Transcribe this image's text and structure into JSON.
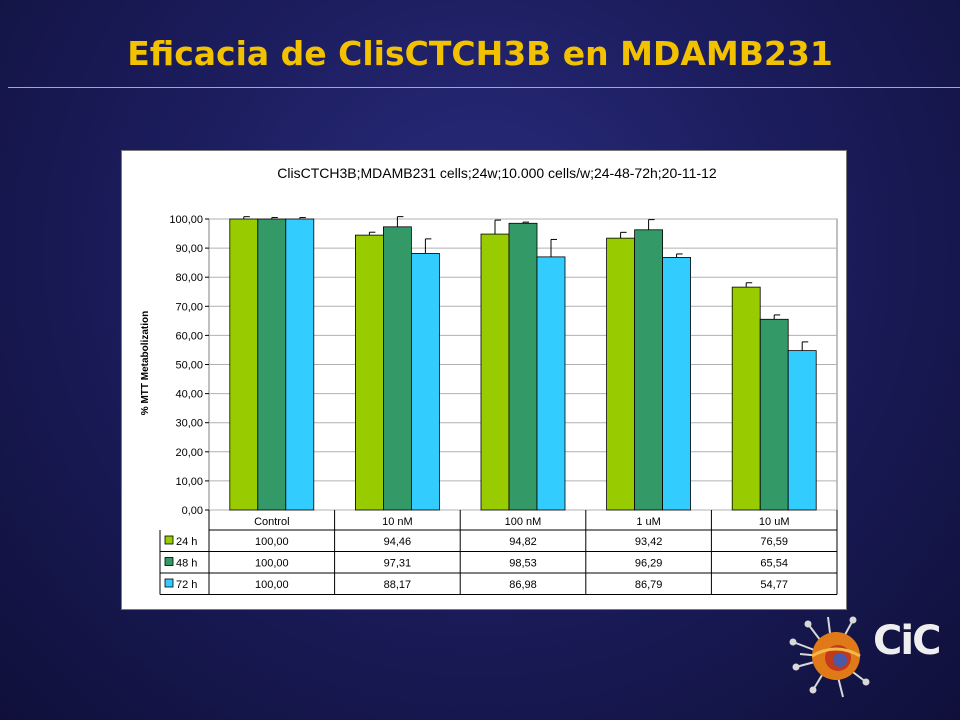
{
  "slide": {
    "title": "Eficacia de ClisCTCH3B en MDAMB231"
  },
  "logo": {
    "text": "CiC"
  },
  "chart_data": {
    "type": "bar",
    "title": "ClisCTCH3B;MDAMB231 cells;24w;10.000 cells/w;24-48-72h;20-11-12",
    "ylabel": "% MTT Metabolization",
    "xlabel": "",
    "ylim": [
      0,
      100
    ],
    "yticks": [
      "0,00",
      "10,00",
      "20,00",
      "30,00",
      "40,00",
      "50,00",
      "60,00",
      "70,00",
      "80,00",
      "90,00",
      "100,00"
    ],
    "grid": true,
    "categories": [
      "Control",
      "10 nM",
      "100 nM",
      "1 uM",
      "10 uM"
    ],
    "series": [
      {
        "name": "24 h",
        "color": "#99cc00",
        "values": [
          100.0,
          94.46,
          94.82,
          93.42,
          76.59
        ],
        "labels": [
          "100,00",
          "94,46",
          "94,82",
          "93,42",
          "76,59"
        ],
        "errors": [
          0.8,
          1.0,
          4.8,
          2.0,
          1.5
        ]
      },
      {
        "name": "48 h",
        "color": "#339966",
        "values": [
          100.0,
          97.31,
          98.53,
          96.29,
          65.54
        ],
        "labels": [
          "100,00",
          "97,31",
          "98,53",
          "96,29",
          "65,54"
        ],
        "errors": [
          0.5,
          3.5,
          0.4,
          3.5,
          1.5
        ]
      },
      {
        "name": "72 h",
        "color": "#33ccff",
        "values": [
          100.0,
          88.17,
          86.98,
          86.79,
          54.77
        ],
        "labels": [
          "100,00",
          "88,17",
          "86,98",
          "86,79",
          "54,77"
        ],
        "errors": [
          0.5,
          5.0,
          6.0,
          1.2,
          3.0
        ]
      }
    ],
    "legend": "data-table-below"
  }
}
